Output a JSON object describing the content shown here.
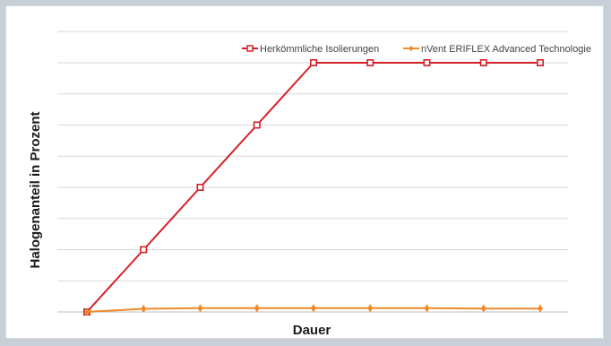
{
  "chart_data": {
    "type": "line",
    "title": "",
    "xlabel": "Dauer",
    "ylabel": "Halogenanteil in Prozent",
    "x": [
      1,
      2,
      3,
      4,
      5,
      6,
      7,
      8,
      9
    ],
    "ylim": [
      0,
      8
    ],
    "grid": true,
    "legend_position": "top-right",
    "series": [
      {
        "name": "Herkömmliche Isolierungen",
        "color": "#d42027",
        "marker": "square",
        "values": [
          0,
          2,
          4,
          6,
          8,
          8,
          8,
          8,
          8
        ]
      },
      {
        "name": "nVent ERIFLEX Advanced Technologie",
        "color": "#ee8a2a",
        "marker": "diamond",
        "values": [
          0,
          0.1,
          0.12,
          0.12,
          0.12,
          0.12,
          0.12,
          0.11,
          0.11
        ]
      }
    ]
  }
}
